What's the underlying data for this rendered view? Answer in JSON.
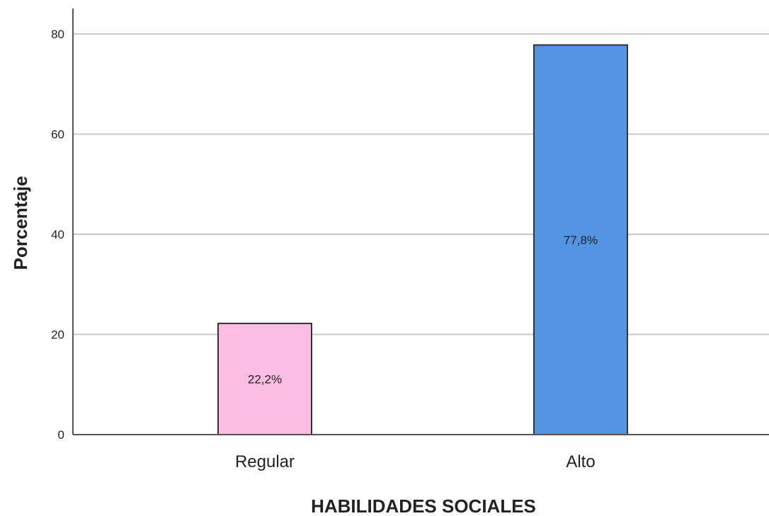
{
  "chart_data": {
    "type": "bar",
    "categories": [
      "Regular",
      "Alto"
    ],
    "values": [
      22.2,
      77.8
    ],
    "value_labels": [
      "22,2%",
      "77,8%"
    ],
    "title": "",
    "xlabel": "HABILIDADES SOCIALES",
    "ylabel": "Porcentaje",
    "ylim": [
      0,
      80
    ],
    "yticks": [
      "0",
      "20",
      "40",
      "60",
      "80"
    ],
    "grid": true,
    "legend": "none",
    "colors": {
      "Regular": "#fbbde2",
      "Alto": "#5395e3",
      "bar_outline": "#333333",
      "gridline": "#c8c8c8",
      "axis": "#555555",
      "text": "#222222"
    }
  }
}
